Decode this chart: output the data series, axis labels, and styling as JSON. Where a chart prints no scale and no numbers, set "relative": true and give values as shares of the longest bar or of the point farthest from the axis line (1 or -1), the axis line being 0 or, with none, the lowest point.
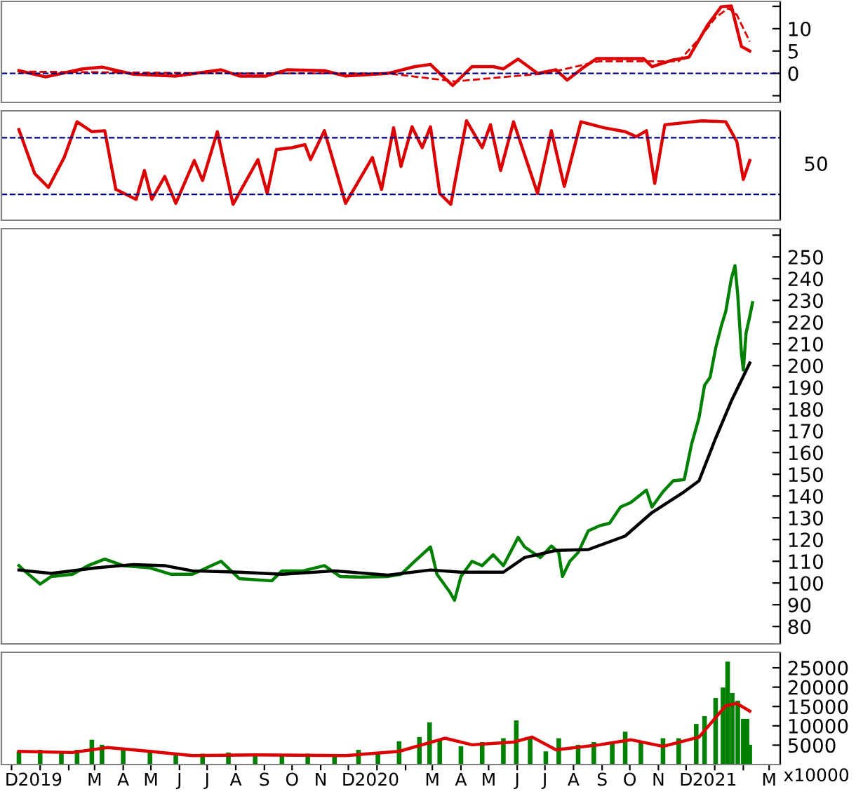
{
  "chart_data": [
    {
      "type": "line",
      "xlim": [
        "2018-11-20",
        "2021-03-13"
      ],
      "ylim": [
        -6.5,
        16.1
      ],
      "yticks": [
        {
          "value": -5,
          "label": null
        },
        0,
        5,
        10,
        {
          "value": 15,
          "label": null
        }
      ],
      "tick_labels": "y",
      "grid": false,
      "legend": false,
      "marker": "none",
      "ref_lines": [
        {
          "axis": "y",
          "value": 0,
          "color": "#000080",
          "line_style": "dashed"
        }
      ],
      "series": [
        {
          "color": "#dd0000",
          "line_style": "solid",
          "x": [
            "2018-12-09",
            "2019-01-07",
            "2019-02-16",
            "2019-03-09",
            "2019-04-12",
            "2019-05-28",
            "2019-07-16",
            "2019-08-05",
            "2019-09-03",
            "2019-09-26",
            "2019-11-05",
            "2019-11-28",
            "2020-01-13",
            "2020-02-11",
            "2020-02-28",
            "2020-03-09",
            "2020-03-23",
            "2020-04-13",
            "2020-05-06",
            "2020-05-17",
            "2020-06-02",
            "2020-06-23",
            "2020-07-13",
            "2020-07-25",
            "2020-08-11",
            "2020-08-26",
            "2020-09-26",
            "2020-10-16",
            "2020-10-25",
            "2020-11-17",
            "2020-12-04",
            "2020-12-24",
            "2021-01-08",
            "2021-01-19",
            "2021-01-30",
            "2021-02-08"
          ],
          "values": [
            0.6,
            -0.8,
            1,
            1.4,
            -0.2,
            -0.6,
            0.8,
            -0.6,
            -0.6,
            0.8,
            0.6,
            -0.6,
            0,
            1.5,
            2,
            0,
            -2.7,
            1.5,
            1.5,
            1,
            3.2,
            0,
            0.8,
            -1.5,
            1.2,
            3.3,
            3.3,
            3.3,
            1.5,
            3,
            3.6,
            10.7,
            14.9,
            15.1,
            6,
            5
          ]
        },
        {
          "color": "#dd0000",
          "line_style": "dashed",
          "x": [
            "2018-12-09",
            "2019-07-24",
            "2020-01-13",
            "2020-03-25",
            "2020-07-02",
            "2020-08-29",
            "2020-11-23",
            "2020-12-15",
            "2021-01-02",
            "2021-01-16",
            "2021-01-25",
            "2021-02-08"
          ],
          "values": [
            0.4,
            0,
            0,
            -1.8,
            0,
            2.7,
            2.7,
            7.7,
            12.5,
            14.6,
            13.1,
            7.1
          ]
        }
      ]
    },
    {
      "type": "line",
      "relative": true,
      "xlim": [
        "2018-11-20",
        "2021-03-13"
      ],
      "tick_labels": false,
      "grid": false,
      "legend": false,
      "marker": "none",
      "annotations": [
        "50"
      ],
      "ref_lines": [
        {
          "axis": "y",
          "value": 0.83,
          "color": "#000080",
          "line_style": "dashed"
        },
        {
          "axis": "y",
          "value": 0.26,
          "color": "#000080",
          "line_style": "dashed"
        }
      ],
      "series": [
        {
          "color": "#dd0000",
          "line_style": "solid",
          "x": [
            "2018-12-09",
            "2018-12-26",
            "2019-01-10",
            "2019-01-27",
            "2019-02-10",
            "2019-02-26",
            "2019-03-12",
            "2019-03-24",
            "2019-04-15",
            "2019-04-24",
            "2019-05-02",
            "2019-05-16",
            "2019-05-28",
            "2019-06-17",
            "2019-06-26",
            "2019-07-12",
            "2019-07-29",
            "2019-08-25",
            "2019-09-04",
            "2019-09-14",
            "2019-10-01",
            "2019-10-15",
            "2019-10-21",
            "2019-11-05",
            "2019-11-28",
            "2019-12-27",
            "2020-01-06",
            "2020-01-19",
            "2020-01-27",
            "2020-02-08",
            "2020-02-19",
            "2020-02-28",
            "2020-03-09",
            "2020-03-21",
            "2020-04-07",
            "2020-04-24",
            "2020-05-03",
            "2020-05-14",
            "2020-05-28",
            "2020-06-23",
            "2020-07-08",
            "2020-07-22",
            "2020-08-09",
            "2020-09-03",
            "2020-09-26",
            "2020-10-08",
            "2020-10-19",
            "2020-10-28",
            "2020-11-08",
            "2020-12-18",
            "2021-01-13",
            "2021-01-25",
            "2021-02-01",
            "2021-02-08"
          ],
          "values": [
            0.91,
            0.47,
            0.33,
            0.63,
            0.99,
            0.89,
            0.9,
            0.31,
            0.21,
            0.5,
            0.21,
            0.44,
            0.17,
            0.6,
            0.4,
            0.89,
            0.16,
            0.61,
            0.27,
            0.71,
            0.73,
            0.76,
            0.61,
            0.9,
            0.17,
            0.63,
            0.31,
            0.93,
            0.54,
            0.94,
            0.73,
            0.94,
            0.27,
            0.16,
            1,
            0.73,
            0.96,
            0.5,
            0.99,
            0.27,
            0.9,
            0.34,
            0.99,
            0.93,
            0.89,
            0.84,
            0.9,
            0.37,
            0.96,
            1,
            0.99,
            0.79,
            0.41,
            0.6
          ]
        }
      ]
    },
    {
      "type": "line",
      "xlim": [
        "2018-11-20",
        "2021-03-13"
      ],
      "ylim": [
        72,
        263
      ],
      "yticks": [
        80,
        90,
        100,
        110,
        120,
        130,
        140,
        150,
        160,
        170,
        180,
        190,
        200,
        210,
        220,
        230,
        240,
        250,
        {
          "value": 260,
          "label": null
        }
      ],
      "tick_labels": "y",
      "grid": false,
      "legend": false,
      "marker": "none",
      "series": [
        {
          "color": "#008000",
          "line_style": "solid",
          "x": [
            "2018-12-09",
            "2018-12-15",
            "2019-01-01",
            "2019-01-13",
            "2019-02-05",
            "2019-02-22",
            "2019-03-12",
            "2019-04-01",
            "2019-04-30",
            "2019-05-23",
            "2019-06-15",
            "2019-07-16",
            "2019-08-05",
            "2019-09-09",
            "2019-09-20",
            "2019-10-13",
            "2019-11-05",
            "2019-11-22",
            "2019-12-15",
            "2020-01-13",
            "2020-01-27",
            "2020-02-11",
            "2020-02-28",
            "2020-03-06",
            "2020-03-20",
            "2020-03-25",
            "2020-04-01",
            "2020-04-13",
            "2020-04-24",
            "2020-05-06",
            "2020-05-17",
            "2020-06-02",
            "2020-06-09",
            "2020-06-26",
            "2020-07-08",
            "2020-07-16",
            "2020-07-20",
            "2020-07-28",
            "2020-08-06",
            "2020-08-17",
            "2020-08-29",
            "2020-09-09",
            "2020-09-21",
            "2020-10-02",
            "2020-10-19",
            "2020-10-25",
            "2020-11-06",
            "2020-11-17",
            "2020-11-29",
            "2020-12-07",
            "2020-12-15",
            "2020-12-21",
            "2020-12-27",
            "2021-01-02",
            "2021-01-08",
            "2021-01-13",
            "2021-01-19",
            "2021-01-23",
            "2021-01-26",
            "2021-01-30",
            "2021-02-01",
            "2021-02-04",
            "2021-02-08",
            "2021-02-11"
          ],
          "values": [
            108,
            105.6,
            99.5,
            103,
            104,
            108,
            111,
            108,
            107,
            104,
            104,
            110,
            102,
            101,
            105.6,
            105.6,
            108,
            103,
            102.7,
            103,
            104,
            110,
            116.6,
            104,
            95.8,
            92,
            103,
            110,
            108,
            113,
            108,
            121,
            116.6,
            111.7,
            117,
            114,
            103,
            110,
            114,
            124,
            126.3,
            127.5,
            135,
            137,
            142.7,
            135,
            142,
            147,
            147.6,
            164,
            176,
            191,
            194.6,
            208,
            218,
            225,
            240,
            246,
            232.4,
            205.6,
            198,
            215,
            222.7,
            229
          ]
        },
        {
          "color": "#000000",
          "line_style": "solid",
          "x": [
            "2018-12-09",
            "2019-01-13",
            "2019-03-03",
            "2019-04-12",
            "2019-05-16",
            "2019-06-15",
            "2019-08-05",
            "2019-09-20",
            "2019-11-16",
            "2020-01-13",
            "2020-02-28",
            "2020-04-01",
            "2020-05-17",
            "2020-06-09",
            "2020-07-13",
            "2020-08-17",
            "2020-09-26",
            "2020-10-25",
            "2020-11-29",
            "2020-12-15",
            "2021-01-02",
            "2021-01-19",
            "2021-02-08"
          ],
          "values": [
            106,
            104.4,
            107,
            108.5,
            108,
            105.6,
            105,
            104,
            105.6,
            103.6,
            106,
            105,
            105,
            111.7,
            115,
            115.4,
            121.6,
            132.4,
            142,
            147,
            166.6,
            183.7,
            201.2
          ]
        }
      ]
    },
    {
      "type": "bar",
      "xlim": [
        "2018-11-20",
        "2021-03-13"
      ],
      "ylim": [
        0,
        29000
      ],
      "yticks": [
        5000,
        10000,
        15000,
        20000,
        25000
      ],
      "xticks": [
        {
          "value": "2018-12-01",
          "label": "D"
        },
        {
          "value": "2019-01-01",
          "label": "2019"
        },
        {
          "value": "2019-02-01",
          "label": null
        },
        {
          "value": "2019-03-01",
          "label": "M"
        },
        {
          "value": "2019-04-01",
          "label": "A"
        },
        {
          "value": "2019-05-01",
          "label": "M"
        },
        {
          "value": "2019-06-01",
          "label": "J"
        },
        {
          "value": "2019-07-01",
          "label": "J"
        },
        {
          "value": "2019-08-01",
          "label": "A"
        },
        {
          "value": "2019-09-01",
          "label": "S"
        },
        {
          "value": "2019-10-01",
          "label": "O"
        },
        {
          "value": "2019-11-01",
          "label": "N"
        },
        {
          "value": "2019-12-01",
          "label": "D"
        },
        {
          "value": "2020-01-01",
          "label": "2020"
        },
        {
          "value": "2020-02-01",
          "label": null
        },
        {
          "value": "2020-03-01",
          "label": "M"
        },
        {
          "value": "2020-04-01",
          "label": "A"
        },
        {
          "value": "2020-05-01",
          "label": "M"
        },
        {
          "value": "2020-06-01",
          "label": "J"
        },
        {
          "value": "2020-07-01",
          "label": "J"
        },
        {
          "value": "2020-08-01",
          "label": "A"
        },
        {
          "value": "2020-09-01",
          "label": "S"
        },
        {
          "value": "2020-10-01",
          "label": "O"
        },
        {
          "value": "2020-11-01",
          "label": "N"
        },
        {
          "value": "2020-12-01",
          "label": "D"
        },
        {
          "value": "2021-01-01",
          "label": "2021"
        },
        {
          "value": "2021-02-01",
          "label": null
        },
        {
          "value": "2021-03-01",
          "label": "M"
        }
      ],
      "grid": false,
      "legend": false,
      "annotations": [
        "x10000"
      ],
      "series": [
        {
          "type": "bar",
          "color": "#008000",
          "x": [
            "2018-12-09",
            "2019-01-01",
            "2019-01-24",
            "2019-02-10",
            "2019-02-26",
            "2019-03-09",
            "2019-04-01",
            "2019-04-30",
            "2019-05-28",
            "2019-06-26",
            "2019-07-24",
            "2019-08-22",
            "2019-09-20",
            "2019-10-18",
            "2019-11-16",
            "2019-12-12",
            "2020-01-02",
            "2020-01-25",
            "2020-02-16",
            "2020-02-27",
            "2020-03-09",
            "2020-04-01",
            "2020-04-24",
            "2020-05-17",
            "2020-05-31",
            "2020-06-15",
            "2020-07-02",
            "2020-07-16",
            "2020-08-06",
            "2020-08-23",
            "2020-09-12",
            "2020-09-26",
            "2020-10-13",
            "2020-11-06",
            "2020-11-23",
            "2020-12-12",
            "2020-12-21",
            "2021-01-02",
            "2021-01-10",
            "2021-01-15",
            "2021-01-20",
            "2021-01-26",
            "2021-02-01",
            "2021-02-05",
            "2021-02-08"
          ],
          "values": [
            3400,
            3800,
            3100,
            3800,
            6400,
            5100,
            3800,
            3100,
            2800,
            2800,
            3100,
            2500,
            2500,
            2800,
            2400,
            3800,
            2800,
            6000,
            7100,
            10900,
            6400,
            4700,
            5800,
            6800,
            11400,
            7100,
            3400,
            6800,
            5100,
            5800,
            5800,
            8500,
            5800,
            6800,
            6800,
            10500,
            12500,
            17200,
            19900,
            26600,
            18500,
            16500,
            11800,
            11800,
            5100
          ]
        },
        {
          "type": "line",
          "color": "#dd0000",
          "line_style": "solid",
          "x": [
            "2018-12-09",
            "2019-02-05",
            "2019-03-15",
            "2019-04-30",
            "2019-06-15",
            "2019-08-22",
            "2019-11-28",
            "2020-01-25",
            "2020-03-15",
            "2020-04-13",
            "2020-05-28",
            "2020-06-17",
            "2020-07-13",
            "2020-08-29",
            "2020-10-02",
            "2020-11-06",
            "2020-12-15",
            "2021-01-13",
            "2021-01-25",
            "2021-02-08"
          ],
          "values": [
            3400,
            3100,
            4400,
            3400,
            2300,
            2500,
            2300,
            3400,
            6800,
            5100,
            5800,
            7100,
            3800,
            5100,
            6400,
            4700,
            7100,
            15200,
            15800,
            13800
          ]
        }
      ]
    }
  ]
}
